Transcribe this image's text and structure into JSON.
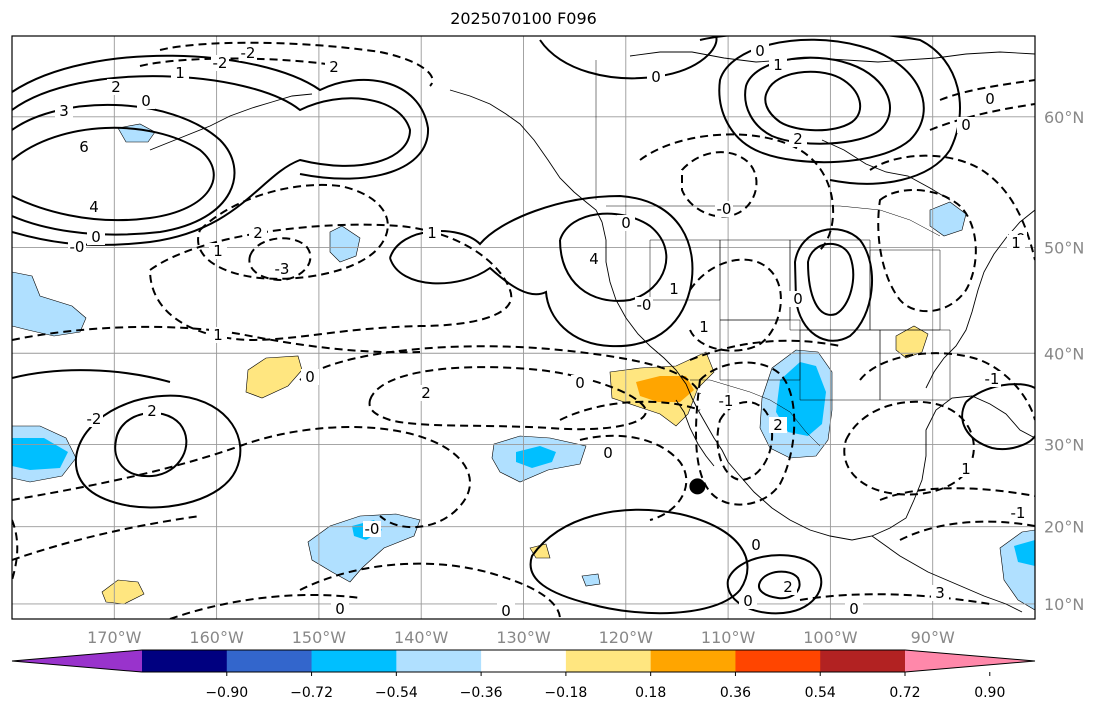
{
  "title": "2025070100 F096",
  "map": {
    "lon_ticks": [
      {
        "lon": -170,
        "label": "170°W"
      },
      {
        "lon": -160,
        "label": "160°W"
      },
      {
        "lon": -150,
        "label": "150°W"
      },
      {
        "lon": -140,
        "label": "140°W"
      },
      {
        "lon": -130,
        "label": "130°W"
      },
      {
        "lon": -120,
        "label": "120°W"
      },
      {
        "lon": -110,
        "label": "110°W"
      },
      {
        "lon": -100,
        "label": "100°W"
      },
      {
        "lon": -90,
        "label": "90°W"
      }
    ],
    "lat_ticks": [
      {
        "lat": 60,
        "label": "60°N"
      },
      {
        "lat": 50,
        "label": "50°N"
      },
      {
        "lat": 40,
        "label": "40°N"
      },
      {
        "lat": 30,
        "label": "30°N"
      },
      {
        "lat": 20,
        "label": "20°N"
      },
      {
        "lat": 10,
        "label": "10°N"
      }
    ],
    "lon_range": [
      -180,
      -80
    ],
    "lat_range": [
      8,
      65
    ],
    "grid": true,
    "marker": {
      "lon": -113,
      "lat": 25,
      "color": "#000000"
    }
  },
  "colorbar": {
    "colors": [
      "#9933cc",
      "#000080",
      "#3366cc",
      "#00bfff",
      "#b0e0ff",
      "#ffffff",
      "#ffe680",
      "#ffa500",
      "#ff4500",
      "#b22222",
      "#ff88aa"
    ],
    "tick_labels": [
      "−0.90",
      "−0.72",
      "−0.54",
      "−0.36",
      "−0.18",
      "0.18",
      "0.36",
      "0.54",
      "0.72",
      "0.90"
    ]
  },
  "contour_labels": [
    "-2",
    "-2",
    "2",
    "1",
    "2",
    "0",
    "3",
    "6",
    "4",
    "0",
    "-0",
    "2",
    "1",
    "-3",
    "1",
    "1",
    "2",
    "-0",
    "2",
    "-2",
    "4",
    "0",
    "1",
    "-0",
    "1",
    "0",
    "0",
    "0",
    "0",
    "1",
    "2",
    "-0",
    "-0",
    "0",
    "0",
    "1",
    "-1",
    "2",
    "-1",
    "-1",
    "2",
    "0",
    "0",
    "0",
    "0",
    "3",
    "0",
    "1",
    "0",
    "0"
  ]
}
